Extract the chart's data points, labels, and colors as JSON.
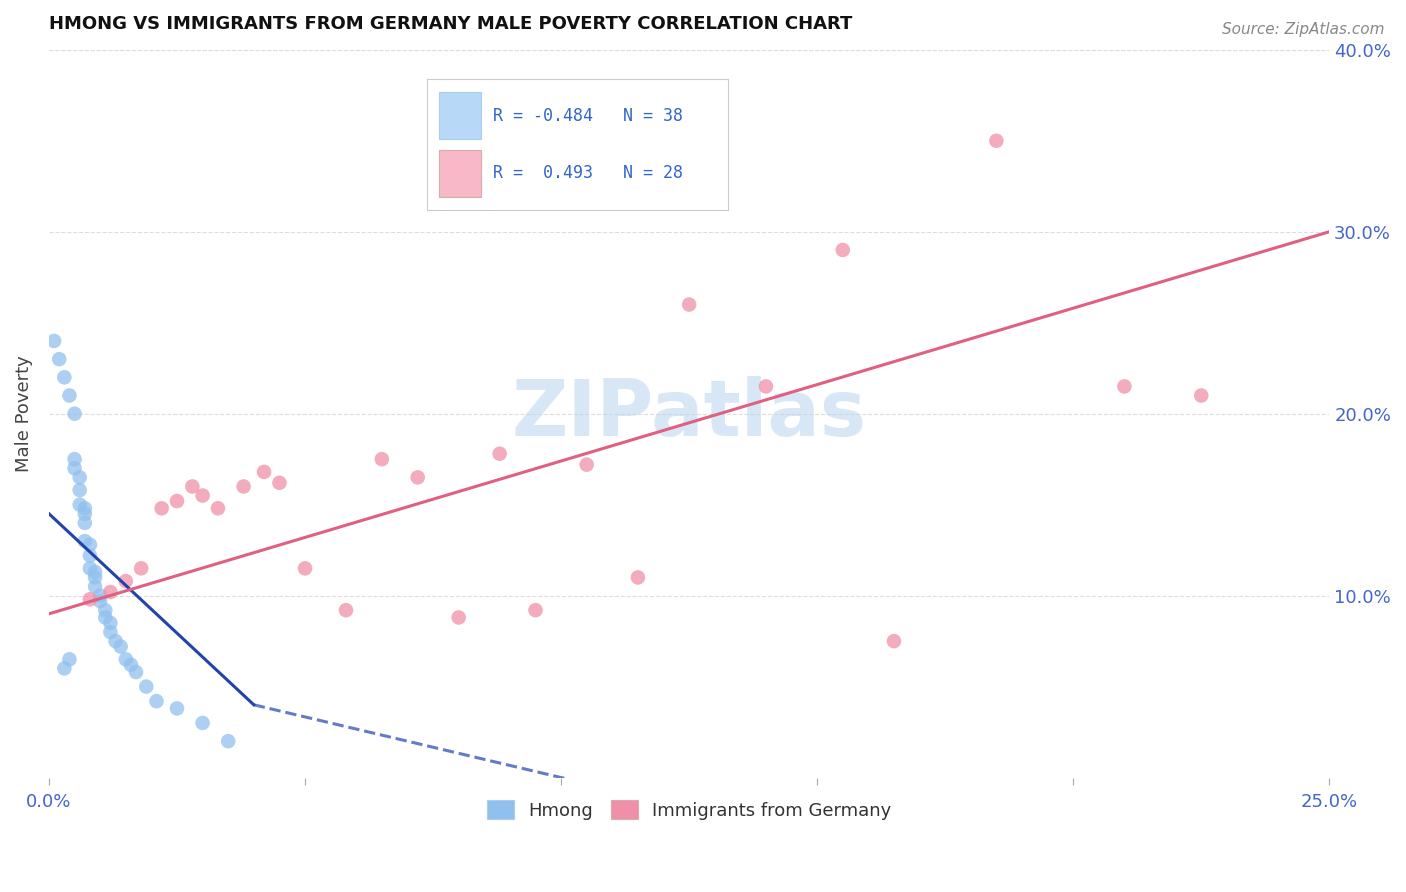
{
  "title": "HMONG VS IMMIGRANTS FROM GERMANY MALE POVERTY CORRELATION CHART",
  "source": "Source: ZipAtlas.com",
  "ylabel": "Male Poverty",
  "watermark": "ZIPatlas",
  "xlim": [
    0.0,
    0.25
  ],
  "ylim": [
    0.0,
    0.4
  ],
  "hmong_R": -0.484,
  "hmong_N": 38,
  "germany_R": 0.493,
  "germany_N": 28,
  "hmong_color": "#90c0ee",
  "germany_color": "#f090a8",
  "hmong_line_color": "#2244aa",
  "hmong_line_dash": true,
  "germany_line_color": "#e06080",
  "legend_box_color_hmong": "#b8d8f8",
  "legend_box_color_germany": "#f8b8c8",
  "hmong_x": [
    0.001,
    0.002,
    0.003,
    0.003,
    0.004,
    0.004,
    0.005,
    0.005,
    0.005,
    0.006,
    0.006,
    0.006,
    0.007,
    0.007,
    0.007,
    0.007,
    0.008,
    0.008,
    0.008,
    0.009,
    0.009,
    0.009,
    0.01,
    0.01,
    0.011,
    0.011,
    0.012,
    0.012,
    0.013,
    0.014,
    0.015,
    0.016,
    0.017,
    0.019,
    0.021,
    0.025,
    0.03,
    0.035
  ],
  "hmong_y": [
    0.24,
    0.23,
    0.22,
    0.06,
    0.21,
    0.065,
    0.2,
    0.175,
    0.17,
    0.165,
    0.158,
    0.15,
    0.148,
    0.145,
    0.14,
    0.13,
    0.128,
    0.122,
    0.115,
    0.113,
    0.11,
    0.105,
    0.1,
    0.097,
    0.092,
    0.088,
    0.085,
    0.08,
    0.075,
    0.072,
    0.065,
    0.062,
    0.058,
    0.05,
    0.042,
    0.038,
    0.03,
    0.02
  ],
  "germany_x": [
    0.008,
    0.012,
    0.015,
    0.018,
    0.022,
    0.025,
    0.028,
    0.03,
    0.033,
    0.038,
    0.042,
    0.045,
    0.05,
    0.058,
    0.065,
    0.072,
    0.08,
    0.088,
    0.095,
    0.105,
    0.115,
    0.125,
    0.14,
    0.155,
    0.165,
    0.185,
    0.21,
    0.225
  ],
  "germany_y": [
    0.098,
    0.102,
    0.108,
    0.115,
    0.148,
    0.152,
    0.16,
    0.155,
    0.148,
    0.16,
    0.168,
    0.162,
    0.115,
    0.092,
    0.175,
    0.165,
    0.088,
    0.178,
    0.092,
    0.172,
    0.11,
    0.26,
    0.215,
    0.29,
    0.075,
    0.35,
    0.215,
    0.21
  ],
  "hmong_trend_x": [
    0.0,
    0.04
  ],
  "hmong_trend_y": [
    0.145,
    0.04
  ],
  "germany_trend_x": [
    0.0,
    0.25
  ],
  "germany_trend_y": [
    0.09,
    0.3
  ],
  "background_color": "#ffffff",
  "grid_color": "#dddddd"
}
